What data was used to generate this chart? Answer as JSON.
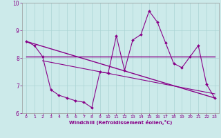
{
  "xlabel": "Windchill (Refroidissement éolien,°C)",
  "bg_color": "#cceaea",
  "line_color": "#880088",
  "grid_color": "#aad4d4",
  "xlim": [
    -0.5,
    23.5
  ],
  "ylim": [
    6.0,
    10.0
  ],
  "yticks": [
    6,
    7,
    8,
    9,
    10
  ],
  "xticks": [
    0,
    1,
    2,
    3,
    4,
    5,
    6,
    7,
    8,
    9,
    10,
    11,
    12,
    13,
    14,
    15,
    16,
    17,
    18,
    19,
    20,
    21,
    22,
    23
  ],
  "line1_x": [
    0,
    1,
    2,
    3,
    4,
    5,
    6,
    7,
    8,
    9,
    10,
    11,
    12,
    13,
    14,
    15,
    16,
    17,
    18,
    19,
    20,
    21,
    22,
    23
  ],
  "line1_y": [
    8.6,
    8.45,
    8.05,
    6.85,
    6.65,
    6.55,
    6.45,
    6.4,
    6.2,
    7.5,
    7.45,
    8.8,
    7.55,
    8.65,
    8.85,
    9.7,
    9.3,
    8.55,
    7.8,
    7.65,
    8.05,
    8.45,
    7.05,
    6.55
  ],
  "line2_x": [
    0,
    23
  ],
  "line2_y": [
    8.05,
    8.05
  ],
  "line3_x": [
    0,
    23
  ],
  "line3_y": [
    8.6,
    6.55
  ],
  "line4_x": [
    2,
    23
  ],
  "line4_y": [
    7.9,
    6.7
  ]
}
